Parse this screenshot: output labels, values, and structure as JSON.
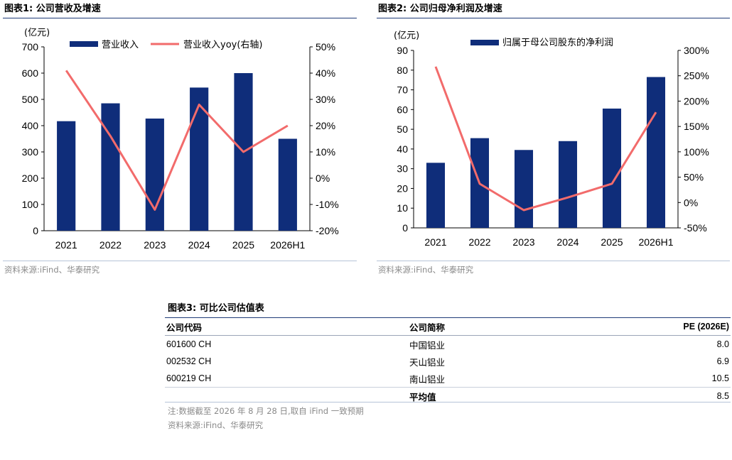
{
  "figure1": {
    "title": "图表1:  公司营收及增速",
    "unit": "(亿元)",
    "legend_bar": "营业收入",
    "legend_line": "营业收入yoy(右轴)",
    "source": "资料来源:iFind、华泰研究",
    "left_ticks": [
      "0",
      "100",
      "200",
      "300",
      "400",
      "500",
      "600",
      "700"
    ],
    "right_ticks": [
      "-20%",
      "-10%",
      "0%",
      "10%",
      "20%",
      "30%",
      "40%",
      "50%"
    ]
  },
  "figure2": {
    "title": "图表2:  公司归母净利润及增速",
    "unit": "(亿元)",
    "legend_bar": "归属于母公司股东的净利润",
    "source": "资料来源:iFind、华泰研究",
    "left_ticks": [
      "0",
      "10",
      "20",
      "30",
      "40",
      "50",
      "60",
      "70",
      "80",
      "90"
    ],
    "right_ticks": [
      "-50%",
      "0%",
      "50%",
      "100%",
      "150%",
      "200%",
      "250%",
      "300%"
    ]
  },
  "chart_data": [
    {
      "type": "bar",
      "categories": [
        "2021",
        "2022",
        "2023",
        "2024",
        "2025",
        "2026H1"
      ],
      "series": [
        {
          "name": "营业收入",
          "type": "bar",
          "axis": "left",
          "values": [
            417,
            485,
            427,
            545,
            600,
            350
          ]
        },
        {
          "name": "营业收入yoy(右轴)",
          "type": "line",
          "axis": "right",
          "values": [
            41,
            16,
            -12,
            28,
            10,
            20
          ]
        }
      ],
      "ylabel": "(亿元)",
      "ylim": [
        0,
        700
      ],
      "y2lim": [
        -20,
        50
      ],
      "color_bar": "#0f2d7a",
      "color_line": "#f26b6b"
    },
    {
      "type": "bar",
      "categories": [
        "2021",
        "2022",
        "2023",
        "2024",
        "2025",
        "2026H1"
      ],
      "series": [
        {
          "name": "归属于母公司股东的净利润",
          "type": "bar",
          "axis": "left",
          "values": [
            33,
            45.5,
            39.5,
            44,
            60.5,
            76.5
          ]
        },
        {
          "type": "line",
          "axis": "right",
          "values": [
            268,
            37,
            -15,
            10,
            37,
            178
          ]
        }
      ],
      "ylabel": "(亿元)",
      "ylim": [
        0,
        90
      ],
      "y2lim": [
        -50,
        300
      ],
      "color_bar": "#0f2d7a",
      "color_line": "#f26b6b"
    }
  ],
  "table3": {
    "title": "图表3:   可比公司估值表",
    "headers": [
      "公司代码",
      "公司简称",
      "PE (2026E)"
    ],
    "rows": [
      [
        "601600 CH",
        "中国铝业",
        "8.0"
      ],
      [
        "002532 CH",
        "天山铝业",
        "6.9"
      ],
      [
        "600219 CH",
        "南山铝业",
        "10.5"
      ]
    ],
    "avg_label": "平均值",
    "avg_value": "8.5",
    "note": "注:数据截至 2026 年 8 月 28 日,取自 iFind 一致预期",
    "source": "资料来源:iFind、华泰研究"
  },
  "colors": {
    "accent": "#1f3b78",
    "bar": "#0f2d7a",
    "line": "#f26b6b",
    "source_text": "#8a8a8a"
  }
}
